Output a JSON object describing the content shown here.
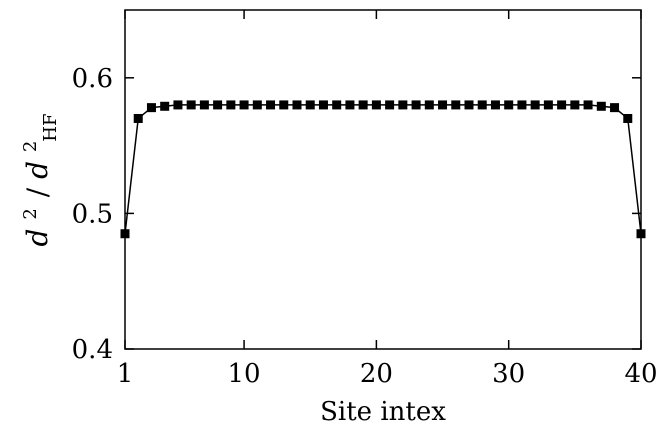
{
  "chart_data": {
    "type": "line",
    "title": "",
    "xlabel": "Site intex",
    "ylabel": {
      "main1": "d",
      "sup1": "2",
      "slash": "/",
      "main2": "d",
      "sup2": "2",
      "sub2": "HF"
    },
    "xlim": [
      1,
      40
    ],
    "ylim": [
      0.4,
      0.65
    ],
    "xticks": [
      1,
      10,
      20,
      30,
      40
    ],
    "xtick_labels": [
      "1",
      "10",
      "20",
      "30",
      "40"
    ],
    "yticks": [
      0.4,
      0.5,
      0.6
    ],
    "ytick_labels": [
      "0.4",
      "0.5",
      "0.6"
    ],
    "grid": false,
    "legend": "none",
    "series": [
      {
        "marker": "square",
        "color": "#000000",
        "x": [
          1,
          2,
          3,
          4,
          5,
          6,
          7,
          8,
          9,
          10,
          11,
          12,
          13,
          14,
          15,
          16,
          17,
          18,
          19,
          20,
          21,
          22,
          23,
          24,
          25,
          26,
          27,
          28,
          29,
          30,
          31,
          32,
          33,
          34,
          35,
          36,
          37,
          38,
          39,
          40
        ],
        "y": [
          0.485,
          0.57,
          0.578,
          0.579,
          0.58,
          0.58,
          0.58,
          0.58,
          0.58,
          0.58,
          0.58,
          0.58,
          0.58,
          0.58,
          0.58,
          0.58,
          0.58,
          0.58,
          0.58,
          0.58,
          0.58,
          0.58,
          0.58,
          0.58,
          0.58,
          0.58,
          0.58,
          0.58,
          0.58,
          0.58,
          0.58,
          0.58,
          0.58,
          0.58,
          0.58,
          0.58,
          0.579,
          0.578,
          0.57,
          0.485
        ]
      }
    ]
  }
}
